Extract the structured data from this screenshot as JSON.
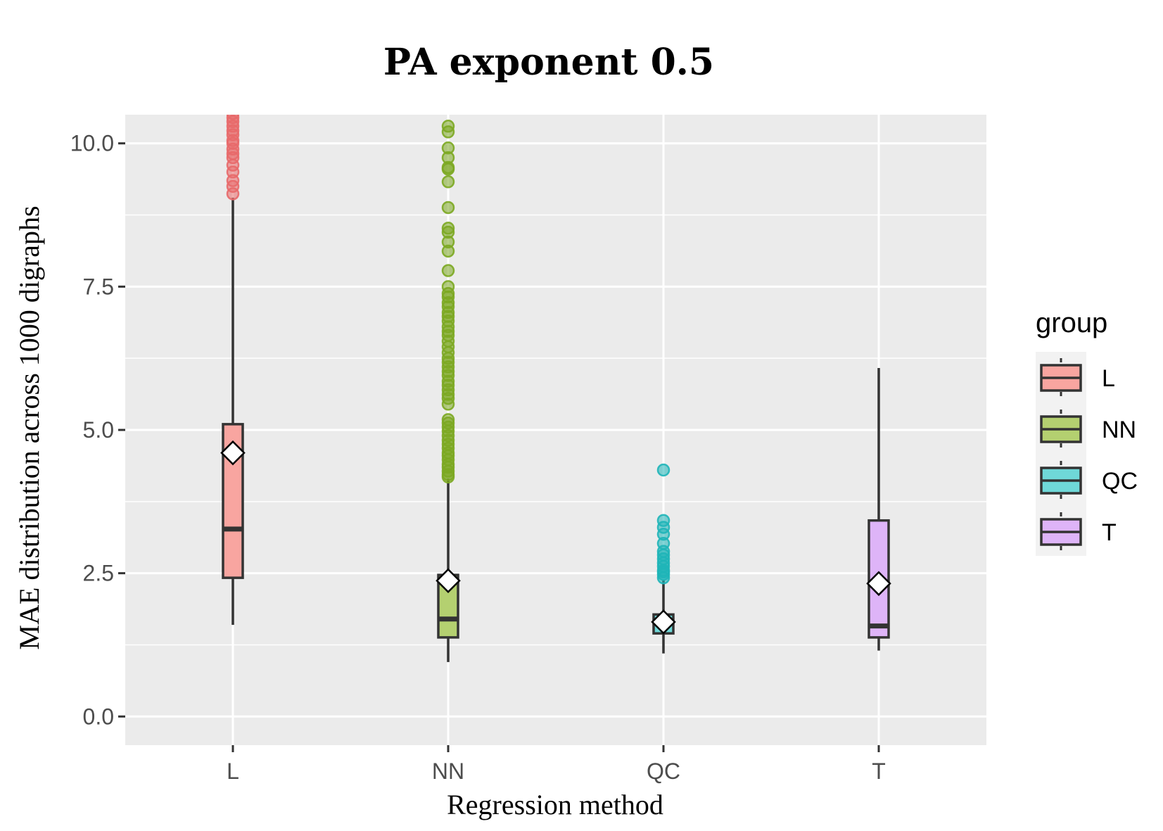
{
  "chart_data": {
    "type": "boxplot",
    "title": "PA exponent 0.5",
    "xlabel": "Regression method",
    "ylabel": "MAE distribution across 1000 digraphs",
    "ylim": [
      -0.5,
      10.5
    ],
    "yticks": [
      0.0,
      2.5,
      5.0,
      7.5,
      10.0
    ],
    "ytick_labels": [
      "0.0",
      "2.5",
      "5.0",
      "7.5",
      "10.0"
    ],
    "categories": [
      "L",
      "NN",
      "QC",
      "T"
    ],
    "legend": {
      "title": "group",
      "placement": "right",
      "entries": [
        "L",
        "NN",
        "QC",
        "T"
      ]
    },
    "colors": {
      "L": "#f8a5a0",
      "NN": "#b4d070",
      "QC": "#6fd8d8",
      "T": "#deb4f8",
      "L_point": "#e8696a",
      "NN_point": "#7ca822",
      "QC_point": "#1fb5b8",
      "panel": "#ebebeb",
      "grid": "#ffffff",
      "box_line": "#333333"
    },
    "series": [
      {
        "name": "L",
        "whisker_low": 1.6,
        "q1": 2.42,
        "median": 3.27,
        "q3": 5.1,
        "whisker_high": 9.05,
        "mean": 4.6,
        "outliers": [
          9.12,
          9.25,
          9.35,
          9.5,
          9.62,
          9.75,
          9.82,
          9.9,
          10.0,
          10.05,
          10.15,
          10.22,
          10.3,
          10.38,
          10.45,
          10.52,
          10.6
        ]
      },
      {
        "name": "NN",
        "whisker_low": 0.95,
        "q1": 1.38,
        "median": 1.7,
        "q3": 2.47,
        "whisker_high": 4.15,
        "mean": 2.37,
        "outliers": [
          4.18,
          4.22,
          4.28,
          4.35,
          4.4,
          4.48,
          4.55,
          4.6,
          4.68,
          4.75,
          4.82,
          4.9,
          4.98,
          5.05,
          5.12,
          5.18,
          5.45,
          5.55,
          5.62,
          5.7,
          5.78,
          5.85,
          5.95,
          6.02,
          6.1,
          6.18,
          6.25,
          6.35,
          6.45,
          6.55,
          6.65,
          6.72,
          6.8,
          6.9,
          6.98,
          7.05,
          7.15,
          7.22,
          7.32,
          7.38,
          7.5,
          7.78,
          8.12,
          8.28,
          8.45,
          8.52,
          8.88,
          9.33,
          9.55,
          9.58,
          9.75,
          9.92,
          10.2,
          10.3
        ]
      },
      {
        "name": "QC",
        "whisker_low": 1.1,
        "q1": 1.45,
        "median": 1.65,
        "q3": 1.78,
        "whisker_high": 2.38,
        "mean": 1.65,
        "outliers": [
          2.42,
          2.48,
          2.52,
          2.55,
          2.62,
          2.68,
          2.75,
          2.82,
          2.88,
          3.02,
          3.18,
          3.3,
          3.42,
          4.3
        ]
      },
      {
        "name": "T",
        "whisker_low": 1.15,
        "q1": 1.38,
        "median": 1.58,
        "q3": 3.42,
        "whisker_high": 6.08,
        "mean": 2.32,
        "outliers": []
      }
    ]
  }
}
